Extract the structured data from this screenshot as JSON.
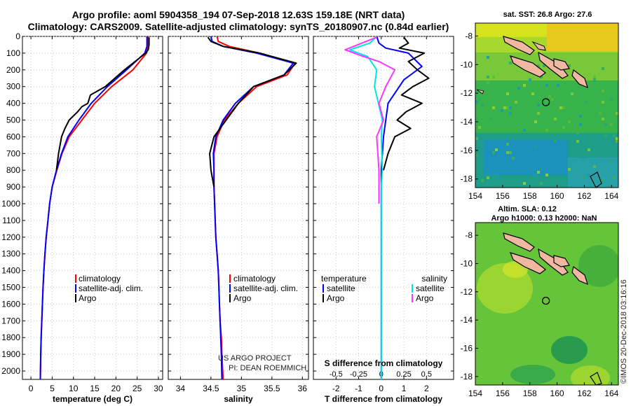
{
  "header": {
    "title_line1": "Argo profile: aoml 5904358_194 07-Sep-2018 12.63S 159.18E (NRT data)",
    "title_line2": "Climatology: CARS2009. Satellite-adjusted climatology: synTS_20180907.nc (0.84d earlier)"
  },
  "colors": {
    "climatology": "#ff0000",
    "satellite": "#0000ff",
    "argo": "#000000",
    "s_satellite": "#00e5e5",
    "s_argo": "#ff33ff"
  },
  "chart_data": [
    {
      "type": "line",
      "id": "temperature",
      "xlabel": "temperature (deg C)",
      "ylabel": "",
      "xlim": [
        -2,
        31
      ],
      "ylim": [
        2050,
        0
      ],
      "xticks": [
        0,
        5,
        10,
        15,
        20,
        25,
        30
      ],
      "xtick_labels": [
        "0",
        "5",
        "10",
        "15",
        "20",
        "25",
        "30"
      ],
      "yticks": [
        0,
        100,
        200,
        300,
        400,
        500,
        600,
        700,
        800,
        900,
        1000,
        1100,
        1200,
        1300,
        1400,
        1500,
        1600,
        1700,
        1800,
        1900,
        2000
      ],
      "ytick_labels": [
        "0",
        "100",
        "200",
        "300",
        "400",
        "500",
        "600",
        "700",
        "800",
        "900",
        "1000",
        "1100",
        "1200",
        "1300",
        "1400",
        "1500",
        "1600",
        "1700",
        "1800",
        "1900",
        "2000"
      ],
      "legend": [
        "climatology",
        "satellite-adj. clim.",
        "Argo"
      ],
      "series": [
        {
          "name": "climatology",
          "color": "#ff0000",
          "x": [
            27.6,
            27.6,
            27.2,
            24.0,
            19.0,
            15.0,
            12.0,
            9.0,
            7.3,
            6.1,
            5.0,
            4.4,
            4.0,
            3.6,
            3.3,
            3.05,
            2.85,
            2.7,
            2.55,
            2.4,
            2.3,
            2.2
          ],
          "y": [
            0,
            60,
            100,
            200,
            300,
            400,
            500,
            600,
            700,
            800,
            900,
            1000,
            1100,
            1200,
            1300,
            1400,
            1500,
            1600,
            1700,
            1800,
            1900,
            2050
          ]
        },
        {
          "name": "satellite-adj. clim.",
          "color": "#0000ff",
          "x": [
            27.3,
            27.3,
            26.8,
            22.5,
            18.0,
            14.2,
            11.3,
            8.7,
            7.2,
            6.0,
            5.0,
            4.4,
            4.0,
            3.6,
            3.3,
            3.05,
            2.85,
            2.7,
            2.55,
            2.4,
            2.3,
            2.2
          ],
          "y": [
            0,
            60,
            100,
            200,
            300,
            400,
            500,
            600,
            700,
            800,
            900,
            1000,
            1100,
            1200,
            1300,
            1400,
            1500,
            1600,
            1700,
            1800,
            1900,
            2050
          ]
        },
        {
          "name": "Argo",
          "color": "#000000",
          "x": [
            27.8,
            27.8,
            27.6,
            27.0,
            22.0,
            17.5,
            14.0,
            13.4,
            12.0,
            11.0,
            9.0,
            8.0,
            7.2,
            6.5,
            6.0
          ],
          "y": [
            5,
            50,
            80,
            100,
            200,
            300,
            350,
            400,
            420,
            450,
            500,
            550,
            600,
            700,
            800
          ]
        }
      ]
    },
    {
      "type": "line",
      "id": "salinity",
      "xlabel": "salinity",
      "ylabel": "",
      "xlim": [
        33.8,
        36.1
      ],
      "ylim": [
        2050,
        0
      ],
      "xticks": [
        34,
        34.5,
        35,
        35.5,
        36
      ],
      "xtick_labels": [
        "34",
        "34.5",
        "35",
        "35.5",
        "36"
      ],
      "legend": [
        "climatology",
        "satellite-adj. clim.",
        "Argo"
      ],
      "credit_line1": "US ARGO PROJECT",
      "credit_line2": "PI: DEAN ROEMMICH",
      "series": [
        {
          "name": "climatology",
          "color": "#ff0000",
          "x": [
            34.6,
            34.62,
            34.8,
            35.3,
            35.88,
            35.75,
            35.25,
            34.95,
            34.72,
            34.6,
            34.55,
            34.55,
            34.55,
            34.56,
            34.58,
            34.6,
            34.62,
            34.63,
            34.64,
            34.65,
            34.67,
            34.68,
            34.7
          ],
          "y": [
            0,
            30,
            60,
            100,
            160,
            230,
            300,
            400,
            500,
            600,
            700,
            800,
            900,
            1000,
            1200,
            1300,
            1400,
            1500,
            1600,
            1700,
            1800,
            1900,
            2050
          ]
        },
        {
          "name": "satellite-adj. clim.",
          "color": "#0000ff",
          "x": [
            34.5,
            34.52,
            34.7,
            35.25,
            35.85,
            35.7,
            35.2,
            34.9,
            34.7,
            34.58,
            34.54,
            34.55,
            34.55,
            34.56,
            34.58,
            34.6,
            34.62,
            34.63,
            34.64,
            34.65,
            34.66,
            34.67,
            34.68
          ],
          "y": [
            0,
            30,
            60,
            100,
            160,
            230,
            300,
            400,
            500,
            600,
            700,
            800,
            900,
            1000,
            1200,
            1300,
            1400,
            1500,
            1600,
            1700,
            1800,
            1900,
            2050
          ]
        },
        {
          "name": "Argo",
          "color": "#000000",
          "x": [
            34.45,
            34.5,
            34.7,
            35.3,
            35.9,
            35.7,
            35.2,
            34.95,
            34.75,
            34.55,
            34.48,
            34.5,
            34.55
          ],
          "y": [
            5,
            30,
            60,
            100,
            160,
            230,
            300,
            400,
            500,
            600,
            700,
            800,
            900
          ]
        }
      ]
    },
    {
      "type": "line",
      "id": "differences",
      "xlabel": "T difference from climatology",
      "xlabel_top": "S difference from climatology",
      "xlim": [
        -3,
        3.2
      ],
      "ylim": [
        2050,
        0
      ],
      "xticks": [
        -2,
        -1,
        0,
        1,
        2
      ],
      "xtick_labels": [
        "-2",
        "-1",
        "0",
        "1",
        "2"
      ],
      "s_ticks": [
        -0.5,
        -0.25,
        0,
        0.25,
        0.5
      ],
      "s_tick_labels": [
        "-0.5",
        "-0.25",
        "0",
        "0.25",
        "0.5"
      ],
      "legend_left_head": "temperature",
      "legend_right_head": "salinity",
      "legend_left": [
        "satellite",
        "Argo"
      ],
      "legend_right": [
        "satellite",
        "Argo"
      ],
      "series": [
        {
          "name": "T satellite",
          "color": "#0000ff",
          "x": [
            -0.2,
            -0.1,
            0.2,
            1.2,
            1.8,
            1.0,
            0.3,
            0.1,
            0.0,
            0.0,
            0.0,
            0.0,
            0.0,
            0.0,
            0.0,
            0.0,
            0.0,
            0.0,
            0.0,
            0.0,
            0.0
          ],
          "y": [
            0,
            40,
            70,
            100,
            180,
            260,
            400,
            600,
            800,
            900,
            1000,
            1100,
            1200,
            1300,
            1400,
            1500,
            1600,
            1700,
            1800,
            1900,
            2050
          ]
        },
        {
          "name": "T Argo",
          "color": "#000000",
          "x": [
            1.0,
            1.2,
            0.8,
            1.9,
            1.2,
            1.6,
            2.1,
            1.4,
            0.9,
            1.8,
            1.1,
            0.7,
            1.3,
            0.6,
            0.3,
            0.1
          ],
          "y": [
            5,
            40,
            70,
            100,
            150,
            200,
            250,
            300,
            350,
            400,
            450,
            500,
            550,
            600,
            700,
            800
          ]
        },
        {
          "name": "S satellite",
          "color": "#00e5e5",
          "x": [
            -0.2,
            -0.5,
            -1.4,
            -0.6,
            -0.2,
            -0.3,
            0.05,
            0.0,
            0.05,
            0.0,
            0.0,
            0.0,
            0.0,
            0.0,
            0.0,
            0.0,
            0.0,
            0.0,
            0.0,
            0.0,
            0.0
          ],
          "y": [
            0,
            40,
            80,
            120,
            200,
            300,
            500,
            600,
            800,
            900,
            1000,
            1100,
            1200,
            1300,
            1400,
            1500,
            1600,
            1700,
            1800,
            1900,
            2050
          ]
        },
        {
          "name": "S Argo",
          "color": "#ff33ff",
          "x": [
            -0.2,
            -1.6,
            -1.0,
            -0.1,
            0.6,
            0.2,
            -0.1,
            0.1,
            -0.2,
            -0.1,
            -0.1
          ],
          "y": [
            5,
            80,
            110,
            150,
            200,
            300,
            400,
            500,
            600,
            800,
            1000
          ]
        }
      ]
    },
    {
      "type": "heatmap",
      "id": "sst_map",
      "title": "sat. SST: 26.8 Argo: 27.6",
      "xticks": [
        154,
        156,
        158,
        160,
        162,
        164
      ],
      "xtick_labels": [
        "154",
        "156",
        "158",
        "160",
        "162",
        "164"
      ],
      "yticks": [
        -8,
        -10,
        -12,
        -14,
        -16,
        -18
      ],
      "ytick_labels": [
        "-8",
        "-10",
        "-12",
        "-14",
        "-16",
        "-18"
      ],
      "xlim": [
        154,
        164.5
      ],
      "ylim": [
        -18.6,
        -7.1
      ],
      "marker": [
        159.18,
        -12.63
      ]
    },
    {
      "type": "heatmap",
      "id": "sla_map",
      "title": "Altim. SLA: 0.12",
      "subtitle": "Argo h1000: 0.13 h2000: NaN",
      "xticks": [
        154,
        156,
        158,
        160,
        162,
        164
      ],
      "xtick_labels": [
        "154",
        "156",
        "158",
        "160",
        "162",
        "164"
      ],
      "yticks": [
        -8,
        -10,
        -12,
        -14,
        -16,
        -18
      ],
      "ytick_labels": [
        "-8",
        "-10",
        "-12",
        "-14",
        "-16",
        "-18"
      ],
      "xlim": [
        154,
        164.5
      ],
      "ylim": [
        -18.6,
        -7.1
      ],
      "marker": [
        159.18,
        -12.63
      ]
    }
  ],
  "footer": {
    "imos_credit": "©IMOS 20-Dec-2018 03:16:16"
  }
}
